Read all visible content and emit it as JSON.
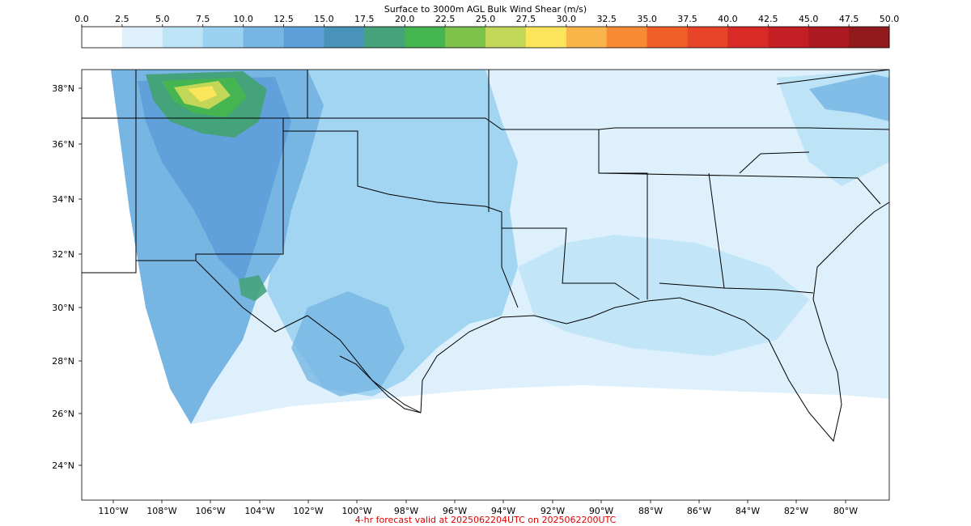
{
  "colorbar": {
    "title": "Surface to 3000m AGL Bulk Wind Shear (m/s)",
    "ticks": [
      "0.0",
      "2.5",
      "5.0",
      "7.5",
      "10.0",
      "12.5",
      "15.0",
      "17.5",
      "20.0",
      "22.5",
      "25.0",
      "27.5",
      "30.0",
      "32.5",
      "35.0",
      "37.5",
      "40.0",
      "42.5",
      "45.0",
      "47.5",
      "50.0"
    ],
    "colors": [
      "#ffffff",
      "#ddf0fb",
      "#bde3f7",
      "#9bd2f1",
      "#77b6e3",
      "#5d9fd9",
      "#4a93b8",
      "#45a37c",
      "#45b551",
      "#7cc149",
      "#c2d757",
      "#fbe55a",
      "#f9b549",
      "#f78b33",
      "#f15f28",
      "#e8442a",
      "#da2a28",
      "#c41f24",
      "#ad1a21",
      "#921a1c"
    ]
  },
  "map": {
    "lat_labels": [
      "38°N",
      "36°N",
      "34°N",
      "32°N",
      "30°N",
      "28°N",
      "26°N",
      "24°N"
    ],
    "lon_labels": [
      "110°W",
      "108°W",
      "106°W",
      "104°W",
      "102°W",
      "100°W",
      "98°W",
      "96°W",
      "94°W",
      "92°W",
      "90°W",
      "88°W",
      "86°W",
      "84°W",
      "82°W",
      "80°W"
    ]
  },
  "footer": "4-hr forecast valid at 2025062204UTC on 2025062200UTC"
}
